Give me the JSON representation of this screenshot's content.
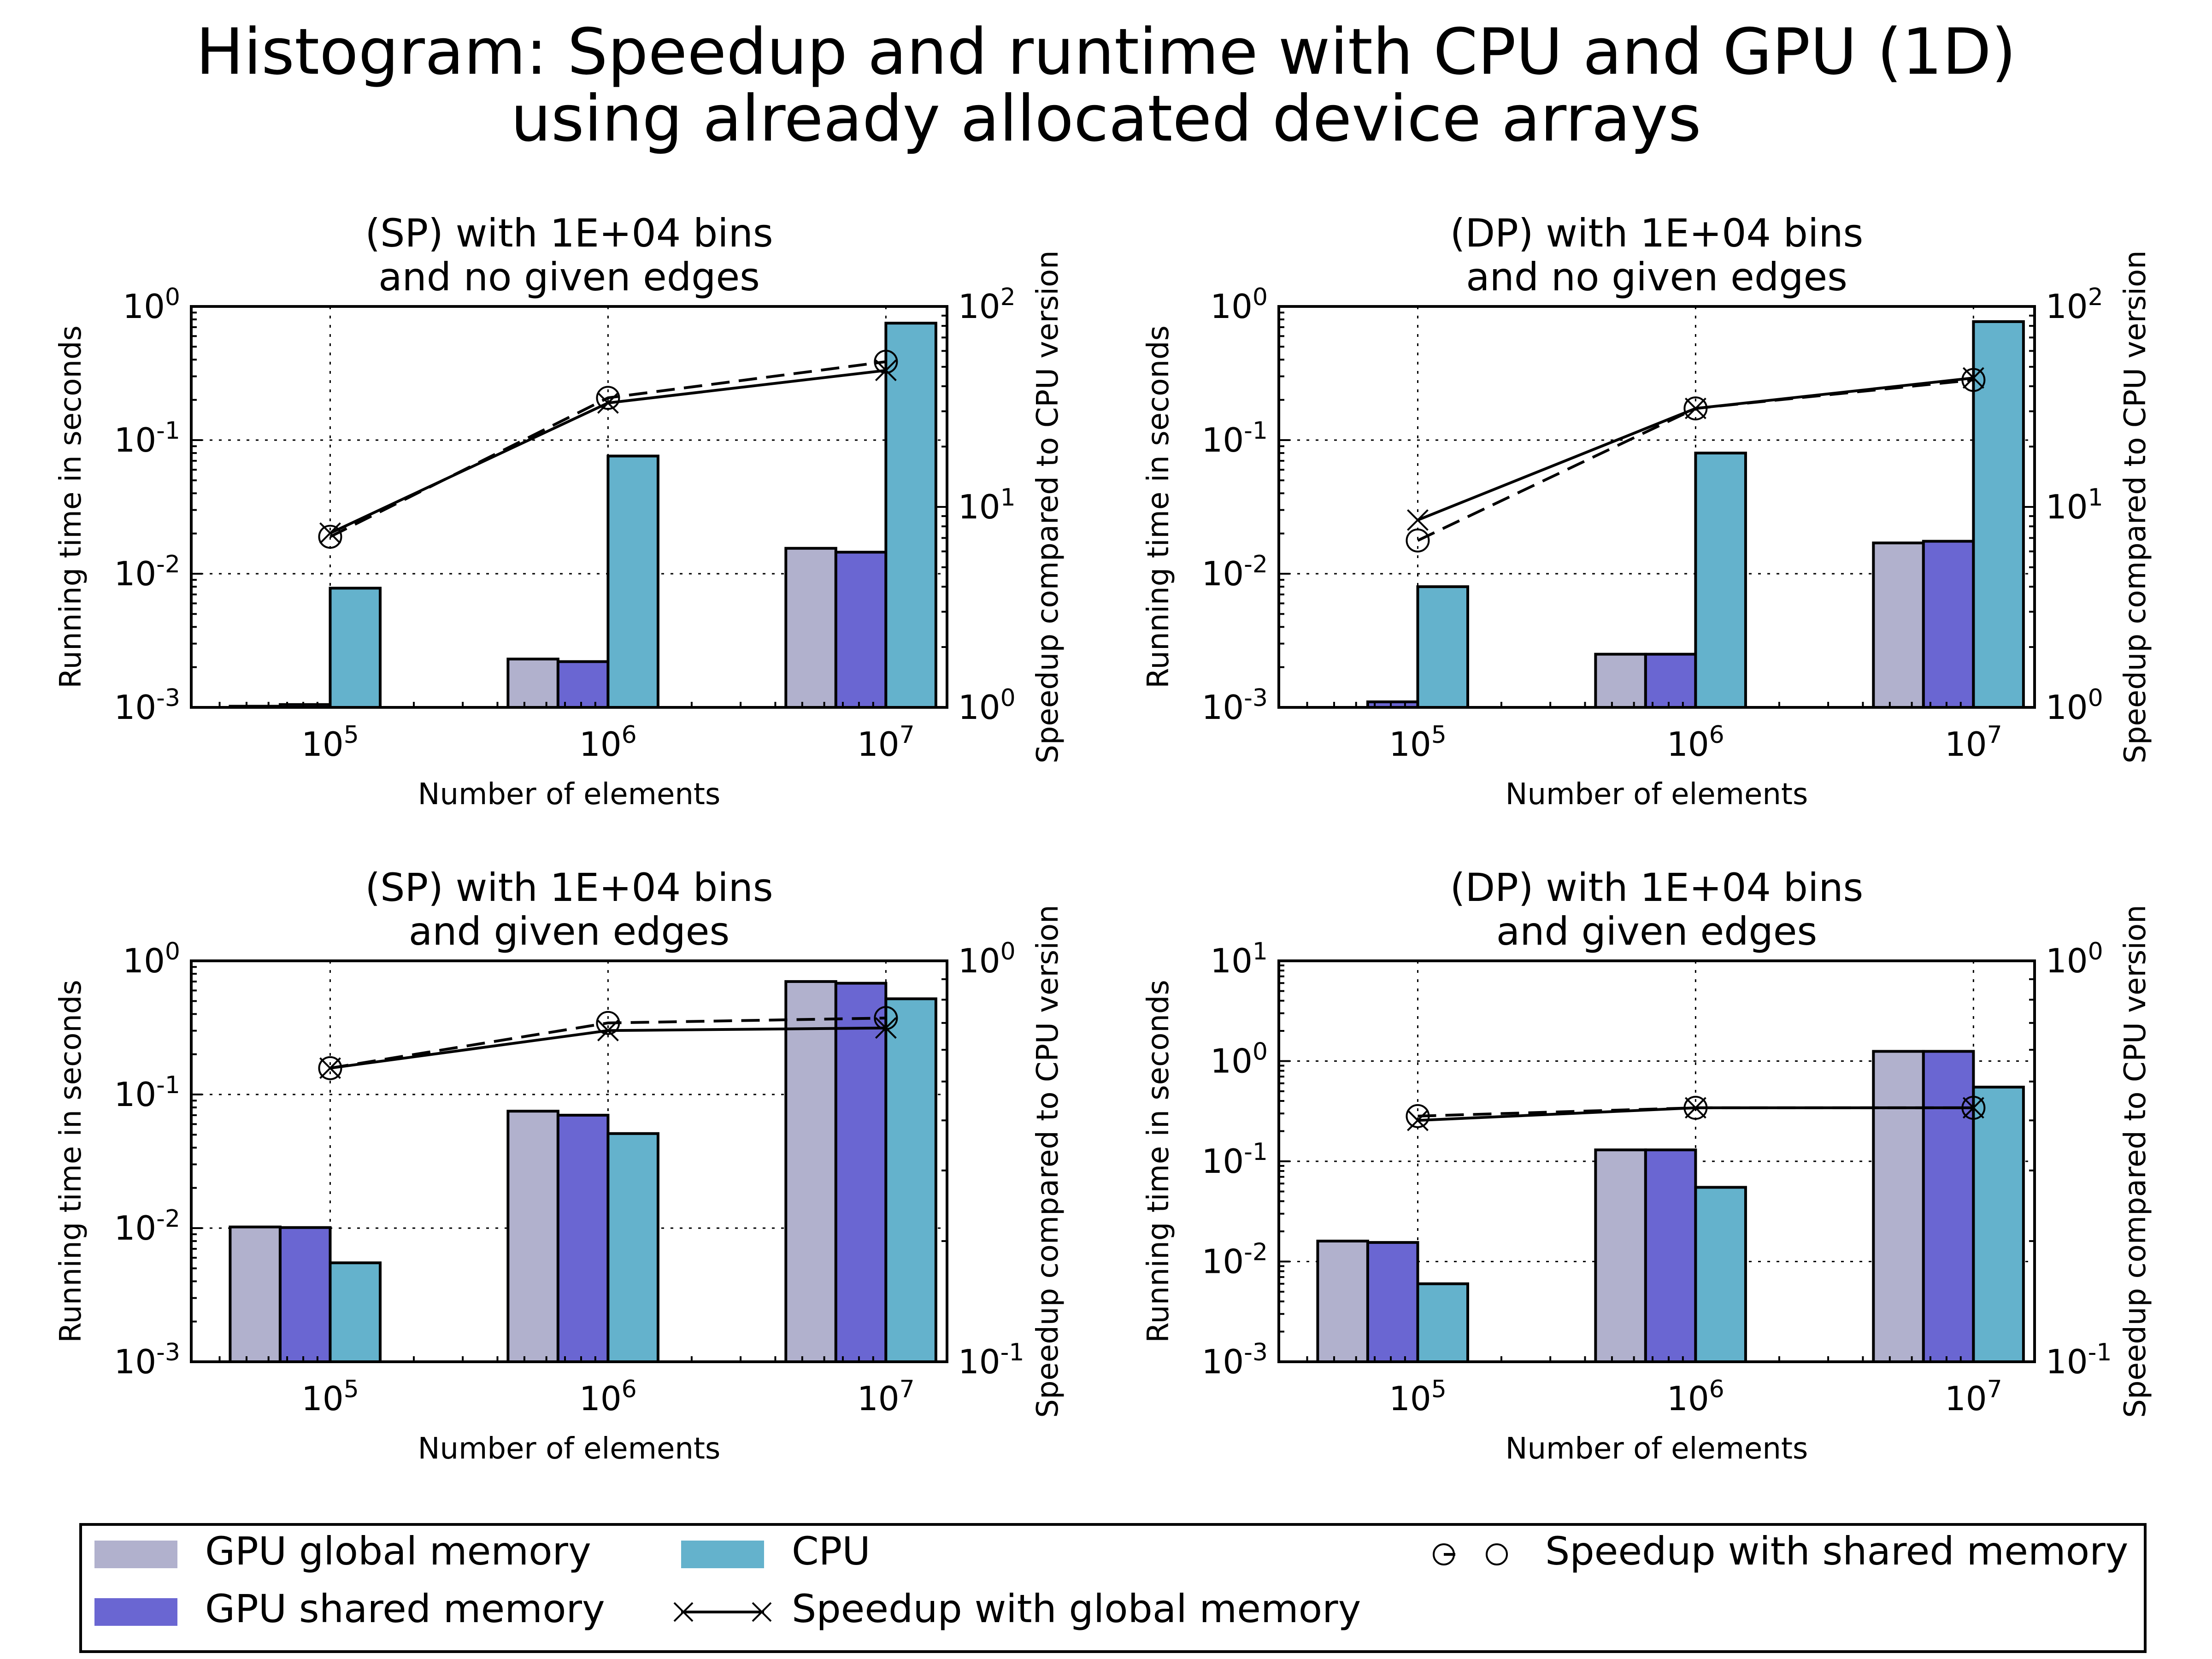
{
  "figure": {
    "title_line1": "Histogram: Speedup and runtime with CPU and GPU (1D)",
    "title_line2": "using already allocated device arrays"
  },
  "colors": {
    "gpu_global": "#b1b1cd",
    "gpu_shared": "#6a66d2",
    "cpu": "#64b2cc"
  },
  "legend": {
    "gpu_global": "GPU global memory",
    "gpu_shared": "GPU shared memory",
    "cpu": "CPU",
    "speedup_global": "Speedup with global memory",
    "speedup_shared": "Speedup with shared memory"
  },
  "chart_data": [
    {
      "type": "bar",
      "title_line1": "(SP) with 1E+04 bins",
      "title_line2": "and no given edges",
      "xlabel": "Number of elements",
      "ylabel": "Running time in seconds",
      "y2label": "Speedup compared to CPU version",
      "x": [
        100000,
        1000000,
        10000000
      ],
      "x_tick_labels": [
        "10^5",
        "10^6",
        "10^7"
      ],
      "yscale": "log",
      "ylim": [
        0.001,
        1
      ],
      "y_tick_labels": [
        "10^-3",
        "10^-2",
        "10^-1",
        "10^0"
      ],
      "y2scale": "log",
      "y2lim": [
        1,
        100
      ],
      "y2_tick_labels": [
        "10^0",
        "10^1",
        "10^2"
      ],
      "grid": true,
      "series": [
        {
          "name": "GPU global memory",
          "kind": "bar",
          "values": [
            0.00102,
            0.0023,
            0.0155
          ]
        },
        {
          "name": "GPU shared memory",
          "kind": "bar",
          "values": [
            0.00105,
            0.0022,
            0.0145
          ]
        },
        {
          "name": "CPU",
          "kind": "bar",
          "values": [
            0.0078,
            0.076,
            0.75
          ]
        },
        {
          "name": "Speedup with global memory",
          "kind": "line",
          "axis": "y2",
          "values": [
            7.4,
            33,
            48
          ]
        },
        {
          "name": "Speedup with shared memory",
          "kind": "line",
          "axis": "y2",
          "values": [
            7.1,
            35,
            53
          ]
        }
      ]
    },
    {
      "type": "bar",
      "title_line1": "(DP) with 1E+04 bins",
      "title_line2": "and no given edges",
      "xlabel": "Number of elements",
      "ylabel": "Running time in seconds",
      "y2label": "Speedup compared to CPU version",
      "x": [
        100000,
        1000000,
        10000000
      ],
      "x_tick_labels": [
        "10^5",
        "10^6",
        "10^7"
      ],
      "yscale": "log",
      "ylim": [
        0.001,
        1
      ],
      "y_tick_labels": [
        "10^-3",
        "10^-2",
        "10^-1",
        "10^0"
      ],
      "y2scale": "log",
      "y2lim": [
        1,
        100
      ],
      "y2_tick_labels": [
        "10^0",
        "10^1",
        "10^2"
      ],
      "grid": true,
      "series": [
        {
          "name": "GPU global memory",
          "kind": "bar",
          "values": [
            0.00095,
            0.0025,
            0.017
          ]
        },
        {
          "name": "GPU shared memory",
          "kind": "bar",
          "values": [
            0.0011,
            0.0025,
            0.0175
          ]
        },
        {
          "name": "CPU",
          "kind": "bar",
          "values": [
            0.008,
            0.08,
            0.77
          ]
        },
        {
          "name": "Speedup with global memory",
          "kind": "line",
          "axis": "y2",
          "values": [
            8.6,
            31,
            44
          ]
        },
        {
          "name": "Speedup with shared memory",
          "kind": "line",
          "axis": "y2",
          "values": [
            6.8,
            31,
            43
          ]
        }
      ]
    },
    {
      "type": "bar",
      "title_line1": "(SP) with 1E+04 bins",
      "title_line2": "and given edges",
      "xlabel": "Number of elements",
      "ylabel": "Running time in seconds",
      "y2label": "Speedup compared to CPU version",
      "x": [
        100000,
        1000000,
        10000000
      ],
      "x_tick_labels": [
        "10^5",
        "10^6",
        "10^7"
      ],
      "yscale": "log",
      "ylim": [
        0.001,
        1
      ],
      "y_tick_labels": [
        "10^-3",
        "10^-2",
        "10^-1",
        "10^0"
      ],
      "y2scale": "log",
      "y2lim": [
        0.1,
        1
      ],
      "y2_tick_labels": [
        "10^-1",
        "10^0"
      ],
      "grid": true,
      "series": [
        {
          "name": "GPU global memory",
          "kind": "bar",
          "values": [
            0.0102,
            0.075,
            0.7
          ]
        },
        {
          "name": "GPU shared memory",
          "kind": "bar",
          "values": [
            0.0101,
            0.07,
            0.68
          ]
        },
        {
          "name": "CPU",
          "kind": "bar",
          "values": [
            0.0055,
            0.051,
            0.52
          ]
        },
        {
          "name": "Speedup with global memory",
          "kind": "line",
          "axis": "y2",
          "values": [
            0.54,
            0.67,
            0.68
          ]
        },
        {
          "name": "Speedup with shared memory",
          "kind": "line",
          "axis": "y2",
          "values": [
            0.54,
            0.7,
            0.72
          ]
        }
      ]
    },
    {
      "type": "bar",
      "title_line1": "(DP) with 1E+04 bins",
      "title_line2": "and given edges",
      "xlabel": "Number of elements",
      "ylabel": "Running time in seconds",
      "y2label": "Speedup compared to CPU version",
      "x": [
        100000,
        1000000,
        10000000
      ],
      "x_tick_labels": [
        "10^5",
        "10^6",
        "10^7"
      ],
      "yscale": "log",
      "ylim": [
        0.001,
        10
      ],
      "y_tick_labels": [
        "10^-3",
        "10^-2",
        "10^-1",
        "10^0",
        "10^1"
      ],
      "y2scale": "log",
      "y2lim": [
        0.1,
        1
      ],
      "y2_tick_labels": [
        "10^-1",
        "10^0"
      ],
      "grid": true,
      "series": [
        {
          "name": "GPU global memory",
          "kind": "bar",
          "values": [
            0.016,
            0.13,
            1.25
          ]
        },
        {
          "name": "GPU shared memory",
          "kind": "bar",
          "values": [
            0.0155,
            0.13,
            1.25
          ]
        },
        {
          "name": "CPU",
          "kind": "bar",
          "values": [
            0.006,
            0.055,
            0.55
          ]
        },
        {
          "name": "Speedup with global memory",
          "kind": "line",
          "axis": "y2",
          "values": [
            0.4,
            0.43,
            0.43
          ]
        },
        {
          "name": "Speedup with shared memory",
          "kind": "line",
          "axis": "y2",
          "values": [
            0.41,
            0.43,
            0.43
          ]
        }
      ]
    }
  ]
}
